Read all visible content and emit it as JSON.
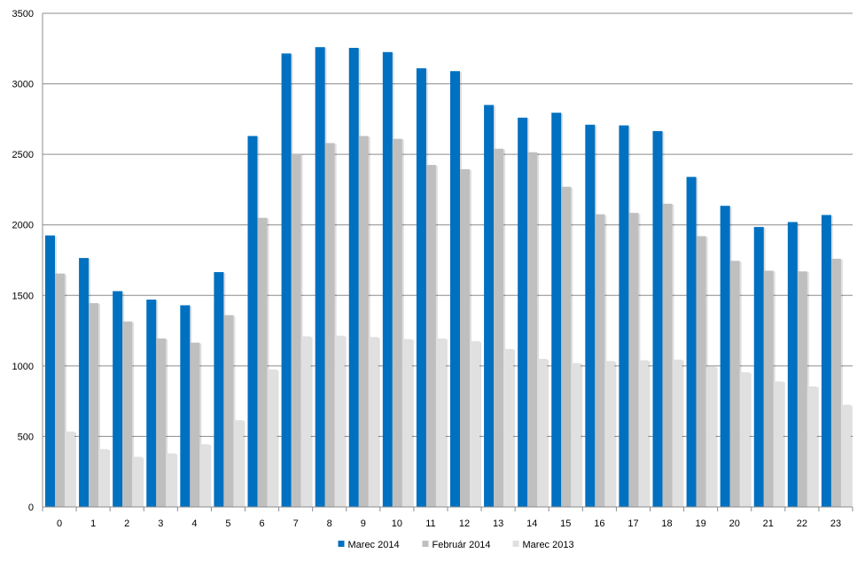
{
  "chart_data": {
    "type": "bar",
    "title": "",
    "xlabel": "",
    "ylabel": "",
    "ylim": [
      0,
      3500
    ],
    "yticks": [
      0,
      500,
      1000,
      1500,
      2000,
      2500,
      3000,
      3500
    ],
    "grid": true,
    "legend_position": "bottom",
    "categories": [
      "0",
      "1",
      "2",
      "3",
      "4",
      "5",
      "6",
      "7",
      "8",
      "9",
      "10",
      "11",
      "12",
      "13",
      "14",
      "15",
      "16",
      "17",
      "18",
      "19",
      "20",
      "21",
      "22",
      "23"
    ],
    "series": [
      {
        "name": "Marec 2014",
        "color": "#0070c0",
        "values": [
          1925,
          1765,
          1530,
          1470,
          1430,
          1665,
          2630,
          3215,
          3260,
          3255,
          3225,
          3110,
          3090,
          2850,
          2760,
          2795,
          2710,
          2705,
          2665,
          2340,
          2135,
          1985,
          2020,
          2070
        ]
      },
      {
        "name": "Február 2014",
        "color": "#bfbfbf",
        "values": [
          1655,
          1445,
          1315,
          1195,
          1165,
          1360,
          2050,
          2505,
          2580,
          2630,
          2610,
          2425,
          2395,
          2540,
          2515,
          2270,
          2075,
          2085,
          2150,
          1920,
          1745,
          1675,
          1670,
          1760
        ]
      },
      {
        "name": "Marec 2013",
        "color": "#e0e0e0",
        "values": [
          535,
          410,
          355,
          380,
          445,
          615,
          975,
          1210,
          1215,
          1205,
          1190,
          1195,
          1175,
          1120,
          1050,
          1020,
          1035,
          1040,
          1045,
          995,
          955,
          890,
          855,
          725
        ]
      }
    ]
  }
}
